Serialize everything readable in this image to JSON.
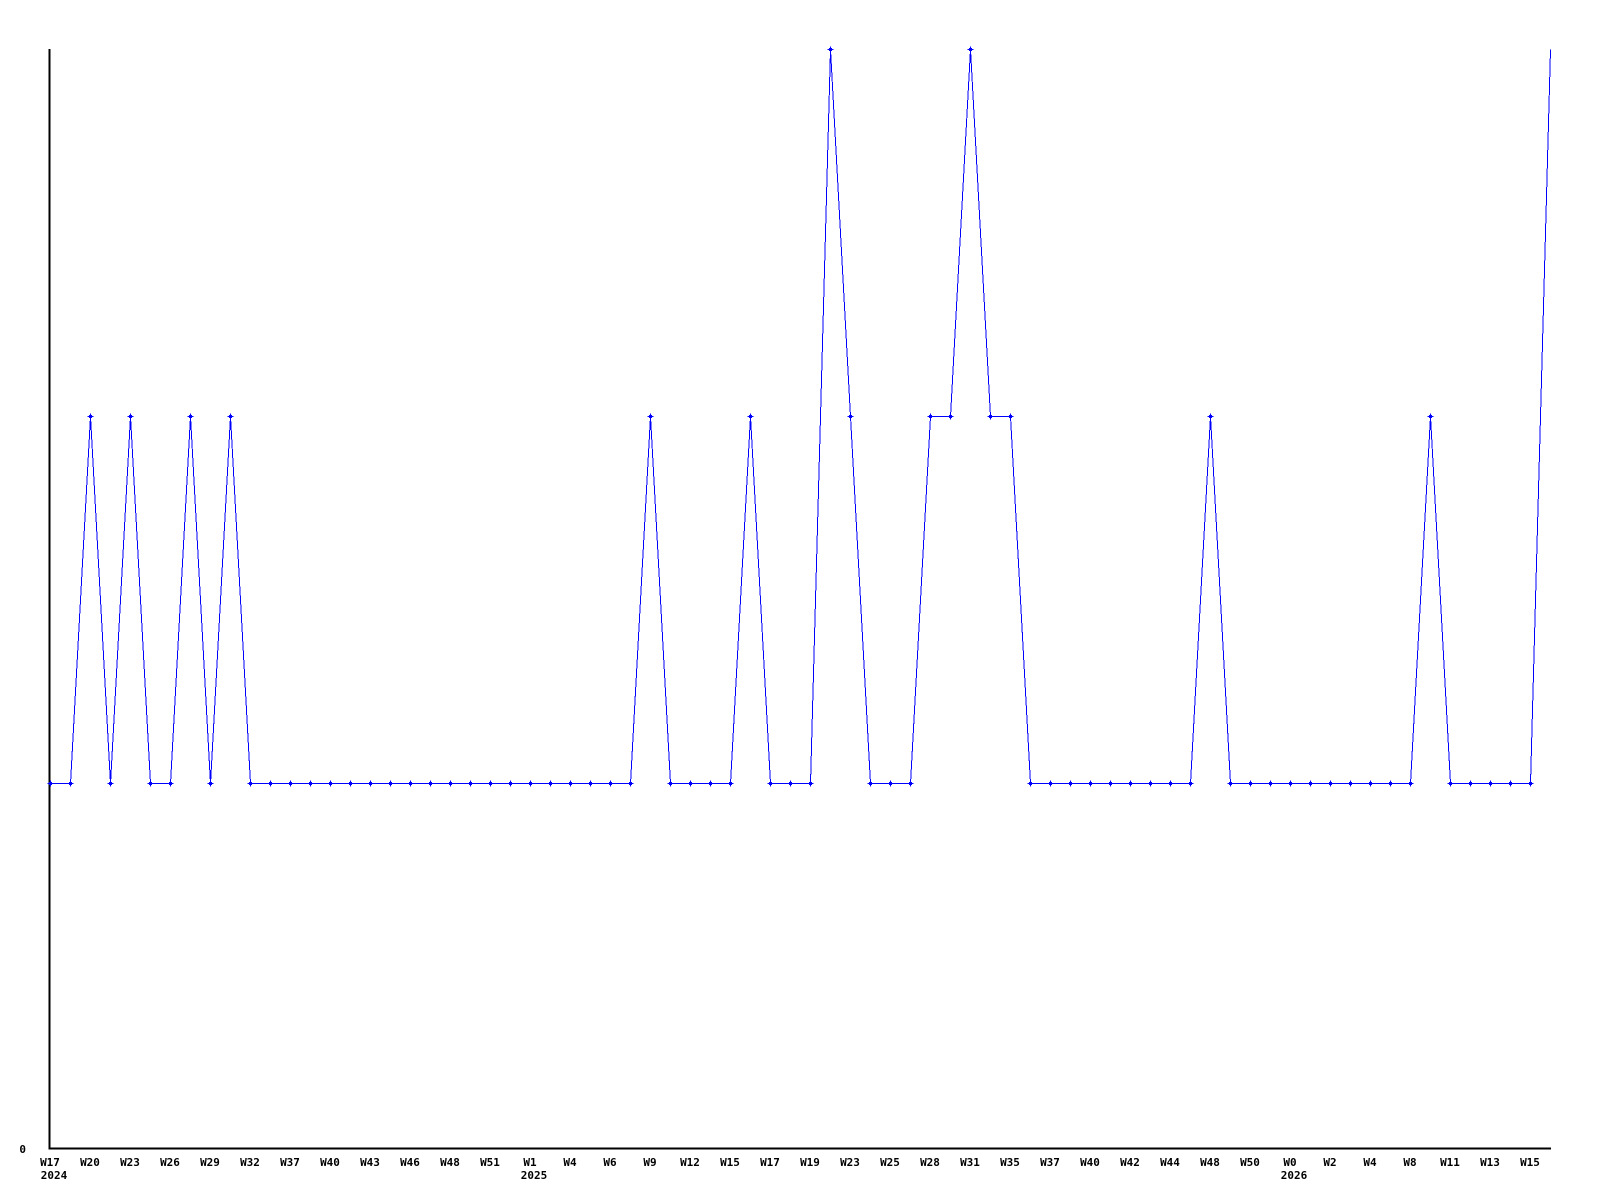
{
  "chart_data": {
    "type": "line",
    "title": "",
    "background": "#ffffff",
    "axis_color": "#000000",
    "text_color": "#000000",
    "grid": false,
    "legend": false,
    "x_axis": {
      "points_per_tick": 2,
      "tick_labels": [
        {
          "label": "W17",
          "year": "2024"
        },
        {
          "label": "W20"
        },
        {
          "label": "W23"
        },
        {
          "label": "W26"
        },
        {
          "label": "W29"
        },
        {
          "label": "W32"
        },
        {
          "label": "W37"
        },
        {
          "label": "W40"
        },
        {
          "label": "W43"
        },
        {
          "label": "W46"
        },
        {
          "label": "W48"
        },
        {
          "label": "W51"
        },
        {
          "label": "W1",
          "year": "2025"
        },
        {
          "label": "W4"
        },
        {
          "label": "W6"
        },
        {
          "label": "W9"
        },
        {
          "label": "W12"
        },
        {
          "label": "W15"
        },
        {
          "label": "W17"
        },
        {
          "label": "W19"
        },
        {
          "label": "W23"
        },
        {
          "label": "W25"
        },
        {
          "label": "W28"
        },
        {
          "label": "W31"
        },
        {
          "label": "W35"
        },
        {
          "label": "W37"
        },
        {
          "label": "W40"
        },
        {
          "label": "W42"
        },
        {
          "label": "W44"
        },
        {
          "label": "W48"
        },
        {
          "label": "W50"
        },
        {
          "label": "W0",
          "year": "2026"
        },
        {
          "label": "W2"
        },
        {
          "label": "W4"
        },
        {
          "label": "W8"
        },
        {
          "label": "W11"
        },
        {
          "label": "W13"
        },
        {
          "label": "W15"
        }
      ]
    },
    "y_axis": {
      "tick_labels": [
        "0"
      ],
      "min": 0,
      "visible_max": 3
    },
    "series": [
      {
        "name": "",
        "color": "#0000ff",
        "marker": "plus",
        "end_clipped": true,
        "values": [
          1,
          1,
          2,
          1,
          2,
          1,
          1,
          2,
          1,
          2,
          1,
          1,
          1,
          1,
          1,
          1,
          1,
          1,
          1,
          1,
          1,
          1,
          1,
          1,
          1,
          1,
          1,
          1,
          1,
          1,
          2,
          1,
          1,
          1,
          1,
          2,
          1,
          1,
          1,
          3,
          2,
          1,
          1,
          1,
          2,
          2,
          3,
          2,
          2,
          1,
          1,
          1,
          1,
          1,
          1,
          1,
          1,
          1,
          2,
          1,
          1,
          1,
          1,
          1,
          1,
          1,
          1,
          1,
          1,
          2,
          1,
          1,
          1,
          1,
          1,
          3
        ]
      }
    ]
  }
}
